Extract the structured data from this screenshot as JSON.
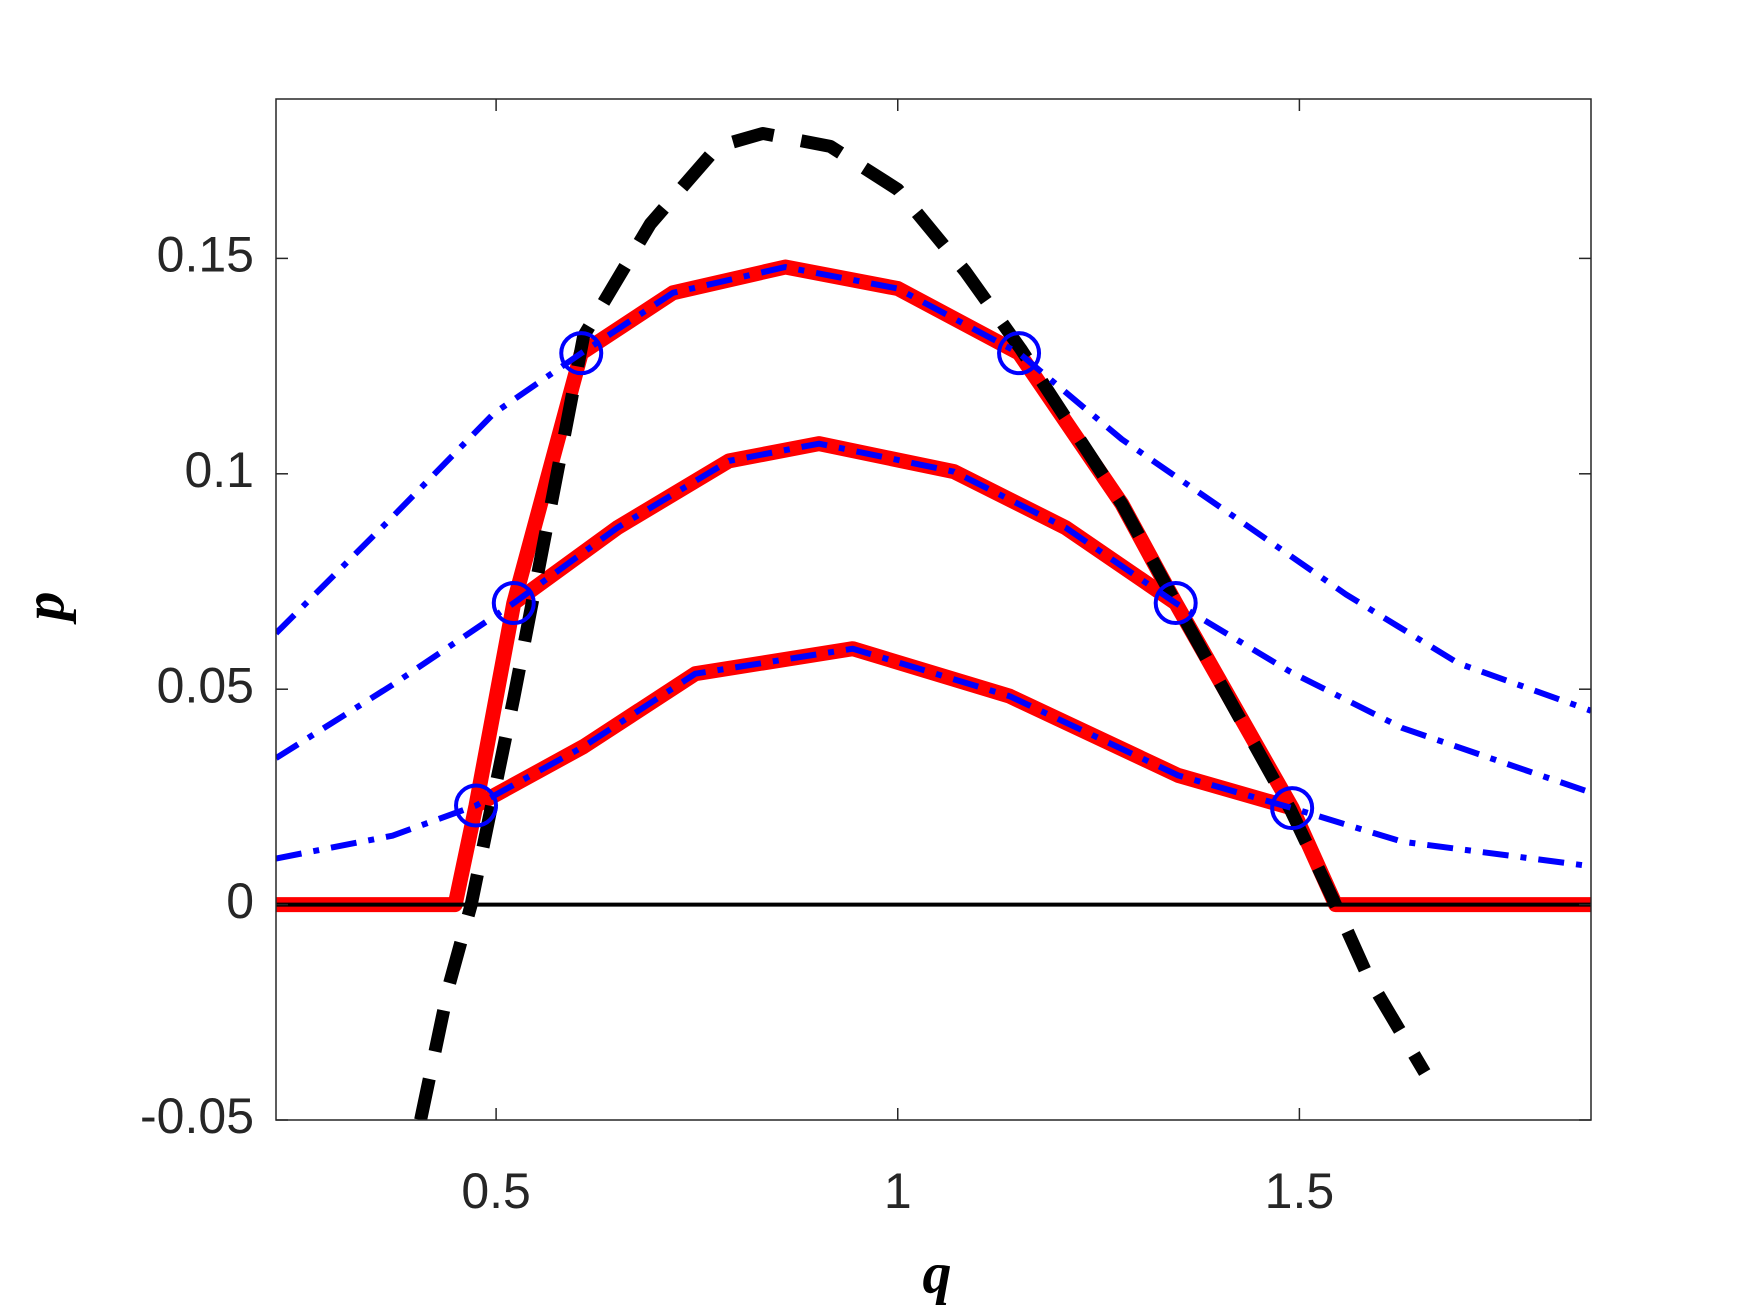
{
  "chart_data": {
    "type": "line",
    "xlabel": "q",
    "ylabel": "p",
    "xlim": [
      0.226,
      1.863
    ],
    "ylim": [
      -0.05,
      0.187
    ],
    "xticks": [
      0.5,
      1,
      1.5
    ],
    "yticks": [
      -0.05,
      0,
      0.05,
      0.1,
      0.15
    ],
    "grid": false,
    "series": [
      {
        "color": "#ff0000",
        "style": "thick",
        "x": [
          0.226,
          0.449,
          0.475,
          0.522,
          0.606,
          0.72,
          0.86,
          1.0,
          1.151,
          1.279,
          1.346,
          1.491,
          1.545,
          1.863
        ],
        "values": [
          0,
          0,
          0.023,
          0.07,
          0.128,
          0.142,
          0.148,
          0.143,
          0.128,
          0.093,
          0.07,
          0.0224,
          0,
          0
        ]
      },
      {
        "color": "#ff0000",
        "style": "thick",
        "x": [
          0.522,
          0.651,
          0.79,
          0.902,
          1.07,
          1.209,
          1.346
        ],
        "values": [
          0.07,
          0.0875,
          0.103,
          0.107,
          0.1005,
          0.0875,
          0.07
        ]
      },
      {
        "color": "#ff0000",
        "style": "thick",
        "x": [
          0.475,
          0.609,
          0.748,
          0.944,
          1.139,
          1.349,
          1.491
        ],
        "values": [
          0.023,
          0.0367,
          0.0536,
          0.0594,
          0.0484,
          0.03,
          0.0224
        ]
      },
      {
        "color": "#000000",
        "style": "thin",
        "x": [
          0.226,
          1.863
        ],
        "values": [
          0,
          0
        ]
      },
      {
        "color": "#000000",
        "style": "dashed",
        "x": [
          0.406,
          0.441,
          0.469,
          0.522,
          0.609,
          0.692,
          0.776,
          0.832,
          0.916,
          1.0,
          1.084,
          1.153,
          1.279,
          1.349,
          1.489,
          1.545,
          1.586,
          1.656
        ],
        "values": [
          -0.05,
          -0.019,
          0,
          0.048,
          0.132,
          0.158,
          0.176,
          0.179,
          0.176,
          0.166,
          0.147,
          0.129,
          0.093,
          0.069,
          0.022,
          0,
          -0.017,
          -0.039
        ]
      },
      {
        "color": "#0000ff",
        "style": "dashdot",
        "x": [
          0.226,
          0.371,
          0.497,
          0.606,
          0.72,
          0.86,
          1.0,
          1.151,
          1.279,
          1.419,
          1.558,
          1.698,
          1.863
        ],
        "values": [
          0.063,
          0.09,
          0.114,
          0.128,
          0.142,
          0.148,
          0.143,
          0.128,
          0.108,
          0.09,
          0.072,
          0.056,
          0.045
        ]
      },
      {
        "color": "#0000ff",
        "style": "dashdot",
        "x": [
          0.226,
          0.371,
          0.522,
          0.651,
          0.79,
          0.902,
          1.07,
          1.209,
          1.346,
          1.489,
          1.628,
          1.863
        ],
        "values": [
          0.034,
          0.051,
          0.07,
          0.0875,
          0.103,
          0.107,
          0.1005,
          0.0875,
          0.07,
          0.054,
          0.041,
          0.026
        ]
      },
      {
        "color": "#0000ff",
        "style": "dashdot",
        "x": [
          0.226,
          0.371,
          0.475,
          0.609,
          0.748,
          0.944,
          1.139,
          1.349,
          1.491,
          1.628,
          1.863
        ],
        "values": [
          0.0107,
          0.016,
          0.023,
          0.0367,
          0.0536,
          0.0594,
          0.0484,
          0.03,
          0.0224,
          0.0146,
          0.0089
        ]
      },
      {
        "color": "#0000ff",
        "style": "circles",
        "x": [
          0.475,
          0.522,
          0.606,
          1.151,
          1.346,
          1.491
        ],
        "values": [
          0.023,
          0.07,
          0.128,
          0.128,
          0.07,
          0.0224
        ]
      }
    ]
  }
}
